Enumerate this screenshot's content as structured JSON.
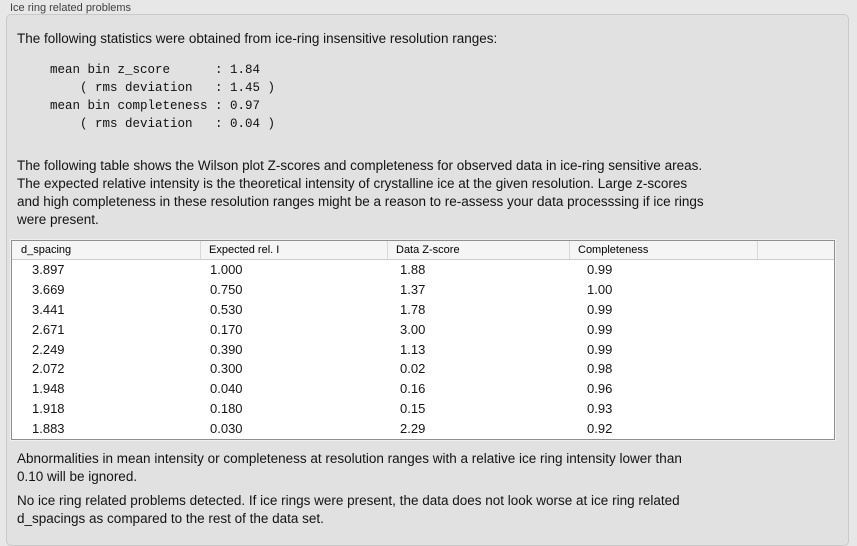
{
  "panel": {
    "title": "Ice ring related problems"
  },
  "intro_text": "The following statistics were obtained from ice-ring insensitive resolution ranges:",
  "stats_block": {
    "lines": [
      "mean bin z_score      : 1.84",
      "    ( rms deviation   : 1.45 )",
      "mean bin completeness : 0.97",
      "    ( rms deviation   : 0.04 )"
    ],
    "mean_bin_z_score": "1.84",
    "z_score_rms_deviation": "1.45",
    "mean_bin_completeness": "0.97",
    "completeness_rms_deviation": "0.04"
  },
  "description_lines": [
    "The following table shows the Wilson plot Z-scores and completeness for observed data in ice-ring sensitive areas.",
    "The expected relative intensity is the theoretical intensity of crystalline ice at the given resolution. Large z-scores",
    "and high completeness in these resolution ranges might be a reason to re-assess your data processsing if ice rings",
    "were present."
  ],
  "table": {
    "headers": [
      "d_spacing",
      "Expected rel. I",
      "Data Z-score",
      "Completeness"
    ],
    "rows": [
      [
        "3.897",
        "1.000",
        "1.88",
        "0.99"
      ],
      [
        "3.669",
        "0.750",
        "1.37",
        "1.00"
      ],
      [
        "3.441",
        "0.530",
        "1.78",
        "0.99"
      ],
      [
        "2.671",
        "0.170",
        "3.00",
        "0.99"
      ],
      [
        "2.249",
        "0.390",
        "1.13",
        "0.99"
      ],
      [
        "2.072",
        "0.300",
        "0.02",
        "0.98"
      ],
      [
        "1.948",
        "0.040",
        "0.16",
        "0.96"
      ],
      [
        "1.918",
        "0.180",
        "0.15",
        "0.93"
      ],
      [
        "1.883",
        "0.030",
        "2.29",
        "0.92"
      ]
    ]
  },
  "note_lines": [
    "Abnormalities in mean intensity or completeness at resolution ranges with a relative ice ring intensity lower than",
    "0.10 will be ignored."
  ],
  "conclusion_lines": [
    "No ice ring related problems detected. If ice rings were present, the data does not look worse at ice ring related",
    "d_spacings as compared to the rest of the data set."
  ],
  "colors": {
    "page_background": "#e7e7e7",
    "box_background": "#e1e1e1",
    "box_border": "#c9c9c9",
    "table_border": "#8f8f8f",
    "table_header_background": "#f5f5f5",
    "text": "#131313",
    "title_text": "#3f3f3f"
  }
}
